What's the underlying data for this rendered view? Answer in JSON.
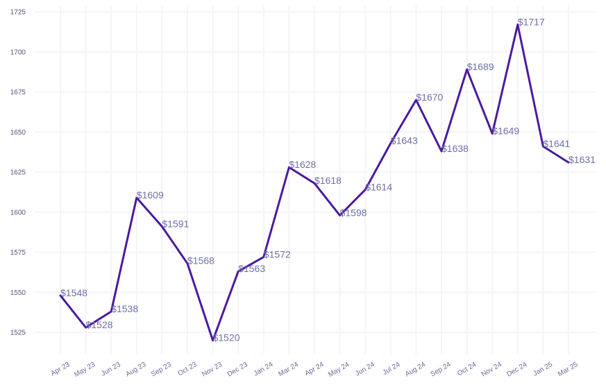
{
  "chart_data": {
    "type": "line",
    "title": "",
    "xlabel": "",
    "ylabel": "",
    "categories": [
      "Apr 23",
      "May 23",
      "Jun 23",
      "Aug 23",
      "Sep 23",
      "Oct 23",
      "Nov 23",
      "Dec 23",
      "Jan 24",
      "Mar 24",
      "Apr 24",
      "May 24",
      "Jun 24",
      "Jul 24",
      "Aug 24",
      "Sep 24",
      "Oct 24",
      "Nov 24",
      "Dec 24",
      "Jan 25",
      "Mar 25"
    ],
    "series": [
      {
        "values": [
          1548,
          1528,
          1538,
          1609,
          1591,
          1568,
          1520,
          1563,
          1572,
          1628,
          1618,
          1598,
          1614,
          1643,
          1670,
          1638,
          1689,
          1649,
          1717,
          1641,
          1631
        ],
        "labels": [
          "$1548",
          "$1528",
          "$1538",
          "$1609",
          "$1591",
          "$1568",
          "$1520",
          "$1563",
          "$1572",
          "$1628",
          "$1618",
          "$1598",
          "$1614",
          "$1643",
          "$1670",
          "$1638",
          "$1689",
          "$1649",
          "$1717",
          "$1641",
          "$1631"
        ]
      }
    ],
    "yticks": [
      1525,
      1550,
      1575,
      1600,
      1625,
      1650,
      1675,
      1700,
      1725
    ],
    "ylim": [
      1511,
      1728
    ],
    "grid": true,
    "legend": "none",
    "line_color": "#4a1aa0"
  }
}
